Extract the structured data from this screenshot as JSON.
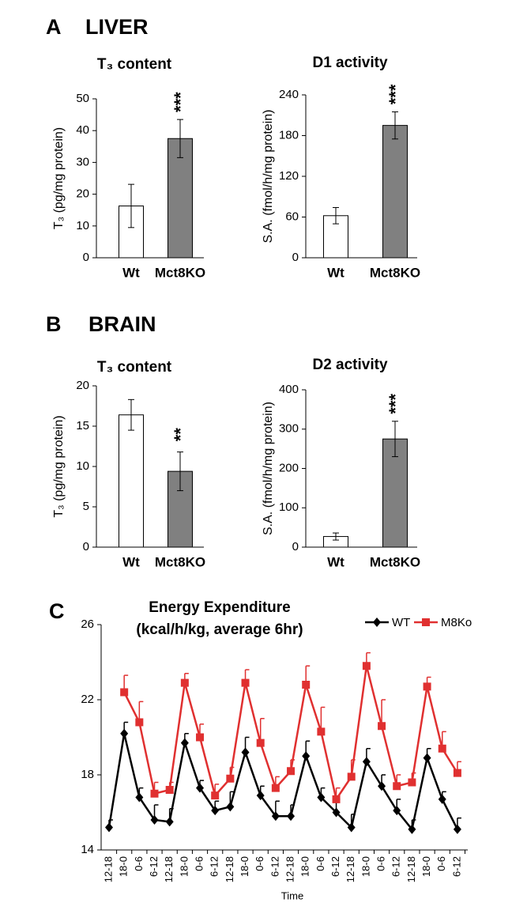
{
  "figure": {
    "panel_a": "A",
    "panel_a_title": "LIVER",
    "panel_b": "B",
    "panel_b_title": "BRAIN",
    "panel_c": "C"
  },
  "chart_data": [
    {
      "type": "bar",
      "title": "T₃ content",
      "ylabel": "T₃ (pg/mg protein)",
      "categories": [
        "Wt",
        "Mct8KO"
      ],
      "values": [
        16.3,
        37.5
      ],
      "errors": [
        6.8,
        6.0
      ],
      "colors": [
        "#ffffff",
        "#808080"
      ],
      "ylim": [
        0,
        50
      ],
      "yticks": [
        0,
        10,
        20,
        30,
        40,
        50
      ],
      "significance": {
        "category": "Mct8KO",
        "label": "***"
      }
    },
    {
      "type": "bar",
      "title": "D1 activity",
      "ylabel": "S.A. (fmol/h/mg protein)",
      "categories": [
        "Wt",
        "Mct8KO"
      ],
      "values": [
        62,
        195
      ],
      "errors": [
        12,
        20
      ],
      "colors": [
        "#ffffff",
        "#808080"
      ],
      "ylim": [
        0,
        240
      ],
      "yticks": [
        0,
        60,
        120,
        180,
        240
      ],
      "significance": {
        "category": "Mct8KO",
        "label": "***"
      }
    },
    {
      "type": "bar",
      "title": "T₃ content",
      "ylabel": "T₃ (pg/mg protein)",
      "categories": [
        "Wt",
        "Mct8KO"
      ],
      "values": [
        16.4,
        9.4
      ],
      "errors": [
        1.9,
        2.4
      ],
      "colors": [
        "#ffffff",
        "#808080"
      ],
      "ylim": [
        0,
        20
      ],
      "yticks": [
        0,
        5,
        10,
        15,
        20
      ],
      "significance": {
        "category": "Mct8KO",
        "label": "**"
      }
    },
    {
      "type": "bar",
      "title": "D2 activity",
      "ylabel": "S.A. (fmol/h/mg protein)",
      "categories": [
        "Wt",
        "Mct8KO"
      ],
      "values": [
        27,
        275
      ],
      "errors": [
        9,
        45
      ],
      "colors": [
        "#ffffff",
        "#808080"
      ],
      "ylim": [
        0,
        400
      ],
      "yticks": [
        0,
        100,
        200,
        300,
        400
      ],
      "significance": {
        "category": "Mct8KO",
        "label": "***"
      }
    },
    {
      "type": "line",
      "title": "Energy Expenditure",
      "subtitle": "(kcal/h/kg, average 6hr)",
      "xlabel": "Time",
      "categories": [
        "12-18",
        "18-0",
        "0-6",
        "6-12",
        "12-18",
        "18-0",
        "0-6",
        "6-12",
        "12-18",
        "18-0",
        "0-6",
        "6-12",
        "12-18",
        "18-0",
        "0-6",
        "6-12",
        "12-18",
        "18-0",
        "0-6",
        "6-12",
        "12-18",
        "18-0",
        "0-6",
        "6-12"
      ],
      "ylim": [
        14,
        26
      ],
      "yticks": [
        14,
        18,
        22,
        26
      ],
      "legend": "top-right",
      "series": [
        {
          "name": "WT",
          "color": "#000000",
          "marker": "diamond",
          "values": [
            15.2,
            20.2,
            16.8,
            15.6,
            15.5,
            19.7,
            17.3,
            16.1,
            16.3,
            19.2,
            16.9,
            15.8,
            15.8,
            19.0,
            16.8,
            16.0,
            15.2,
            18.7,
            17.4,
            16.1,
            15.1,
            18.9,
            16.7,
            15.1
          ],
          "errors": [
            0.4,
            0.6,
            0.5,
            0.8,
            0.7,
            0.5,
            0.4,
            0.5,
            0.8,
            0.8,
            0.5,
            0.8,
            0.6,
            0.8,
            0.5,
            0.7,
            0.7,
            0.7,
            0.6,
            0.6,
            0.5,
            0.5,
            0.4,
            0.6
          ]
        },
        {
          "name": "M8Ko",
          "color": "#e03030",
          "marker": "square",
          "values": [
            null,
            22.4,
            20.8,
            17.0,
            17.2,
            22.9,
            20.0,
            16.9,
            17.8,
            22.9,
            19.7,
            17.3,
            18.2,
            22.8,
            20.3,
            16.7,
            17.9,
            23.8,
            20.6,
            17.4,
            17.6,
            22.7,
            19.4,
            18.1
          ],
          "errors": [
            null,
            0.9,
            1.1,
            0.6,
            0.4,
            0.5,
            0.7,
            0.6,
            0.6,
            0.7,
            1.3,
            0.6,
            0.6,
            1.0,
            1.3,
            0.6,
            0.9,
            0.7,
            1.4,
            0.6,
            0.5,
            0.5,
            0.9,
            0.6
          ]
        }
      ]
    }
  ]
}
